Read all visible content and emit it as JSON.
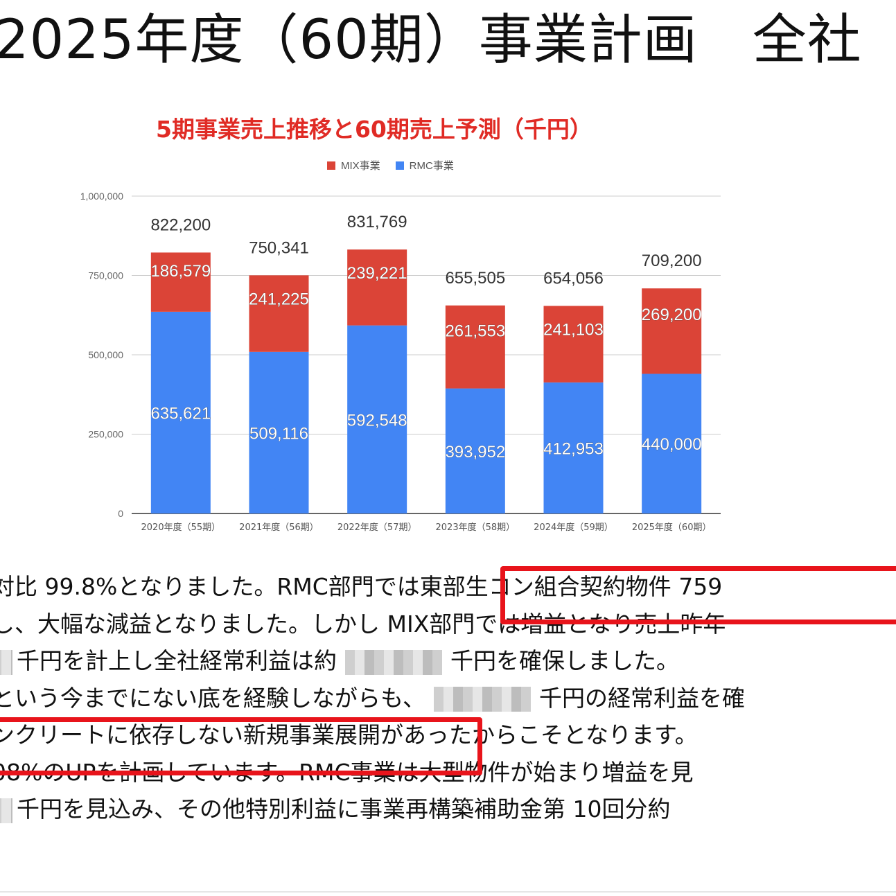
{
  "page": {
    "title": "2025年度（60期）事業計画　全社"
  },
  "chart_data": {
    "type": "bar",
    "stacked": true,
    "title": "5期事業売上推移と60期売上予測（千円）",
    "categories": [
      "2020年度（55期）",
      "2021年度（56期）",
      "2022年度（57期）",
      "2023年度（58期）",
      "2024年度（59期）",
      "2025年度（60期）"
    ],
    "series": [
      {
        "name": "RMC事業",
        "color": "#4285f4",
        "values": [
          635621,
          509116,
          592548,
          393952,
          412953,
          440000
        ]
      },
      {
        "name": "MIX事業",
        "color": "#db4437",
        "values": [
          186579,
          241225,
          239221,
          261553,
          241103,
          269200
        ]
      }
    ],
    "series_labels": {
      "RMC事業": [
        "635,621",
        "509,116",
        "592,548",
        "393,952",
        "412,953",
        "440,000"
      ],
      "MIX事業": [
        "186,579",
        "241,225",
        "239,221",
        "261,553",
        "241,103",
        "269,200"
      ]
    },
    "totals": [
      "822,200",
      "750,341",
      "831,769",
      "655,505",
      "654,056",
      "709,200"
    ],
    "legend_order": [
      "MIX事業",
      "RMC事業"
    ],
    "legend_position": "top",
    "ylim": [
      0,
      1000000
    ],
    "yticks": [
      0,
      250000,
      500000,
      750000,
      1000000
    ],
    "ytick_labels": [
      "0",
      "250,000",
      "500,000",
      "750,000",
      "1,000,000"
    ],
    "grid": true
  },
  "body": {
    "line1a": "対比 99.8%となりました。RMC部門では",
    "line1b": "東部生コン組合契約物件 759",
    "line2": "し、大幅な減益となりました。しかし MIX部門では増益となり売上昨年",
    "line3a": "千円を計上し全社経常利益は約",
    "line3b": "千円を確保しました。",
    "line4a": "という今までにない底を経験しながらも、",
    "line4b": "千円の経常利益を確",
    "line5a": "ンクリートに依存しない新規事業展開",
    "line5b": "があったからこそとなります。",
    "line6": "08%のUPを計画しています。RMC事業は大型物件が始まり増益を見",
    "line7": "千円を見込み、その他特別利益に事業再構築補助金第 10回分約"
  }
}
